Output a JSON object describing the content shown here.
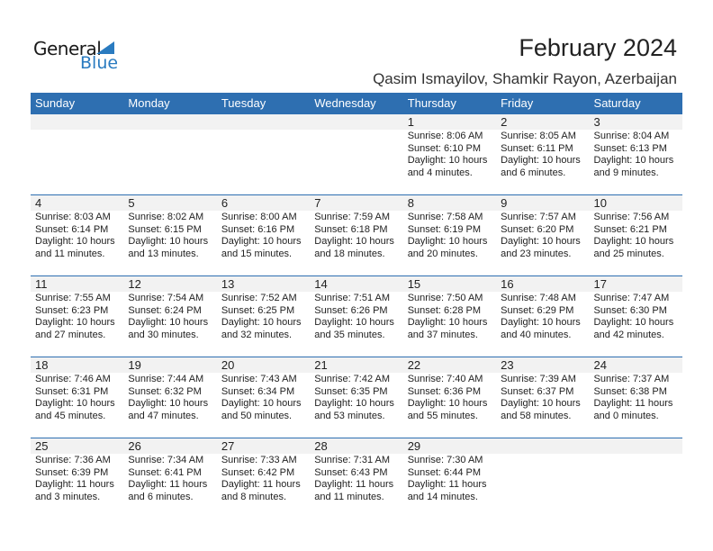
{
  "logo": {
    "line1": "General",
    "line2": "Blue"
  },
  "title": "February 2024",
  "location": "Qasim Ismayilov, Shamkir Rayon, Azerbaijan",
  "weekdays": [
    "Sunday",
    "Monday",
    "Tuesday",
    "Wednesday",
    "Thursday",
    "Friday",
    "Saturday"
  ],
  "colors": {
    "header": "#2e6fb1",
    "date_strip": "#f2f2f2",
    "brand": "#2a7bc0"
  },
  "first_weekday_index": 4,
  "days": [
    [
      "1",
      "Sunrise: 8:06 AM",
      "Sunset: 6:10 PM",
      "Daylight: 10 hours",
      "and 4 minutes."
    ],
    [
      "2",
      "Sunrise: 8:05 AM",
      "Sunset: 6:11 PM",
      "Daylight: 10 hours",
      "and 6 minutes."
    ],
    [
      "3",
      "Sunrise: 8:04 AM",
      "Sunset: 6:13 PM",
      "Daylight: 10 hours",
      "and 9 minutes."
    ],
    [
      "4",
      "Sunrise: 8:03 AM",
      "Sunset: 6:14 PM",
      "Daylight: 10 hours",
      "and 11 minutes."
    ],
    [
      "5",
      "Sunrise: 8:02 AM",
      "Sunset: 6:15 PM",
      "Daylight: 10 hours",
      "and 13 minutes."
    ],
    [
      "6",
      "Sunrise: 8:00 AM",
      "Sunset: 6:16 PM",
      "Daylight: 10 hours",
      "and 15 minutes."
    ],
    [
      "7",
      "Sunrise: 7:59 AM",
      "Sunset: 6:18 PM",
      "Daylight: 10 hours",
      "and 18 minutes."
    ],
    [
      "8",
      "Sunrise: 7:58 AM",
      "Sunset: 6:19 PM",
      "Daylight: 10 hours",
      "and 20 minutes."
    ],
    [
      "9",
      "Sunrise: 7:57 AM",
      "Sunset: 6:20 PM",
      "Daylight: 10 hours",
      "and 23 minutes."
    ],
    [
      "10",
      "Sunrise: 7:56 AM",
      "Sunset: 6:21 PM",
      "Daylight: 10 hours",
      "and 25 minutes."
    ],
    [
      "11",
      "Sunrise: 7:55 AM",
      "Sunset: 6:23 PM",
      "Daylight: 10 hours",
      "and 27 minutes."
    ],
    [
      "12",
      "Sunrise: 7:54 AM",
      "Sunset: 6:24 PM",
      "Daylight: 10 hours",
      "and 30 minutes."
    ],
    [
      "13",
      "Sunrise: 7:52 AM",
      "Sunset: 6:25 PM",
      "Daylight: 10 hours",
      "and 32 minutes."
    ],
    [
      "14",
      "Sunrise: 7:51 AM",
      "Sunset: 6:26 PM",
      "Daylight: 10 hours",
      "and 35 minutes."
    ],
    [
      "15",
      "Sunrise: 7:50 AM",
      "Sunset: 6:28 PM",
      "Daylight: 10 hours",
      "and 37 minutes."
    ],
    [
      "16",
      "Sunrise: 7:48 AM",
      "Sunset: 6:29 PM",
      "Daylight: 10 hours",
      "and 40 minutes."
    ],
    [
      "17",
      "Sunrise: 7:47 AM",
      "Sunset: 6:30 PM",
      "Daylight: 10 hours",
      "and 42 minutes."
    ],
    [
      "18",
      "Sunrise: 7:46 AM",
      "Sunset: 6:31 PM",
      "Daylight: 10 hours",
      "and 45 minutes."
    ],
    [
      "19",
      "Sunrise: 7:44 AM",
      "Sunset: 6:32 PM",
      "Daylight: 10 hours",
      "and 47 minutes."
    ],
    [
      "20",
      "Sunrise: 7:43 AM",
      "Sunset: 6:34 PM",
      "Daylight: 10 hours",
      "and 50 minutes."
    ],
    [
      "21",
      "Sunrise: 7:42 AM",
      "Sunset: 6:35 PM",
      "Daylight: 10 hours",
      "and 53 minutes."
    ],
    [
      "22",
      "Sunrise: 7:40 AM",
      "Sunset: 6:36 PM",
      "Daylight: 10 hours",
      "and 55 minutes."
    ],
    [
      "23",
      "Sunrise: 7:39 AM",
      "Sunset: 6:37 PM",
      "Daylight: 10 hours",
      "and 58 minutes."
    ],
    [
      "24",
      "Sunrise: 7:37 AM",
      "Sunset: 6:38 PM",
      "Daylight: 11 hours",
      "and 0 minutes."
    ],
    [
      "25",
      "Sunrise: 7:36 AM",
      "Sunset: 6:39 PM",
      "Daylight: 11 hours",
      "and 3 minutes."
    ],
    [
      "26",
      "Sunrise: 7:34 AM",
      "Sunset: 6:41 PM",
      "Daylight: 11 hours",
      "and 6 minutes."
    ],
    [
      "27",
      "Sunrise: 7:33 AM",
      "Sunset: 6:42 PM",
      "Daylight: 11 hours",
      "and 8 minutes."
    ],
    [
      "28",
      "Sunrise: 7:31 AM",
      "Sunset: 6:43 PM",
      "Daylight: 11 hours",
      "and 11 minutes."
    ],
    [
      "29",
      "Sunrise: 7:30 AM",
      "Sunset: 6:44 PM",
      "Daylight: 11 hours",
      "and 14 minutes."
    ]
  ]
}
